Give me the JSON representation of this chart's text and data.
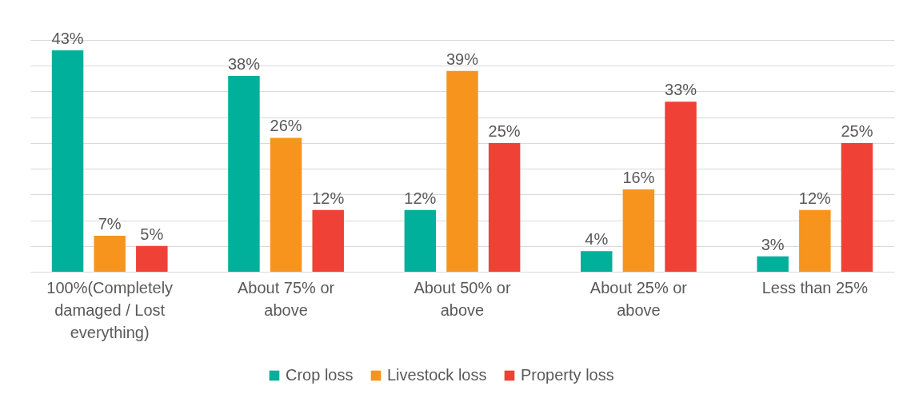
{
  "chart_data": {
    "type": "bar",
    "categories": [
      "100%(Completely damaged / Lost everything)",
      "About 75% or above",
      "About 50% or above",
      "About 25% or above",
      "Less than 25%"
    ],
    "series": [
      {
        "name": "Crop loss",
        "color": "#00b09b",
        "values": [
          43,
          38,
          12,
          4,
          3
        ],
        "value_labels": [
          "43%",
          "38%",
          "12%",
          "4%",
          "3%"
        ]
      },
      {
        "name": "Livestock loss",
        "color": "#f7941d",
        "values": [
          7,
          26,
          39,
          16,
          12
        ],
        "value_labels": [
          "7%",
          "26%",
          "39%",
          "16%",
          "12%"
        ]
      },
      {
        "name": "Property loss",
        "color": "#ef4136",
        "values": [
          5,
          12,
          25,
          33,
          25
        ],
        "value_labels": [
          "5%",
          "12%",
          "25%",
          "33%",
          "25%"
        ]
      }
    ],
    "tick_labels": "x",
    "grid": "y",
    "legend": "bottom"
  }
}
